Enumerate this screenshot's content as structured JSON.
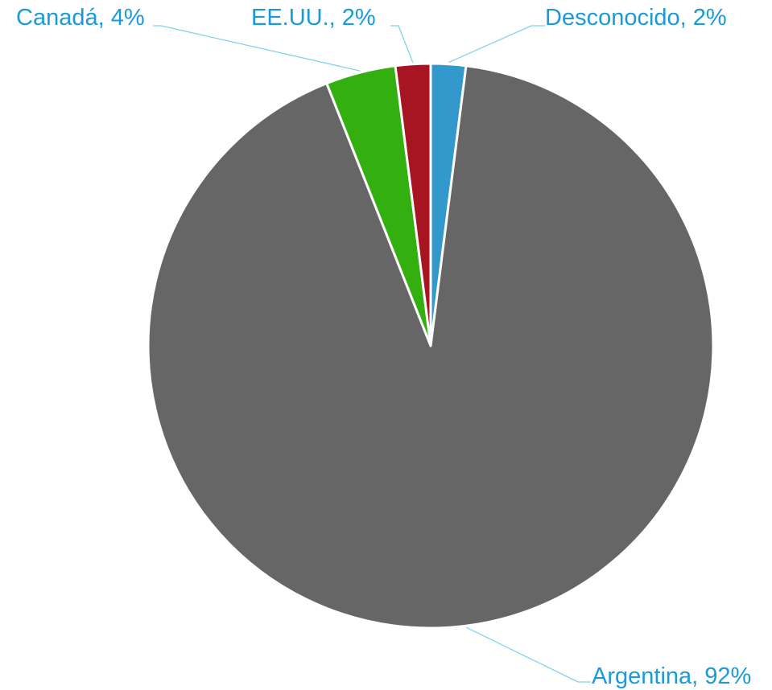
{
  "chart_data": {
    "type": "pie",
    "title": "",
    "categories": [
      "Desconocido",
      "Argentina",
      "Canadá",
      "EE.UU."
    ],
    "values": [
      2,
      92,
      4,
      2
    ],
    "labels": [
      "Desconocido, 2%",
      "Argentina, 92%",
      "Canadá, 4%",
      "EE.UU., 2%"
    ],
    "colors": [
      "#3399cc",
      "#666666",
      "#33b010",
      "#a81522"
    ],
    "label_color": "#1a9bd7",
    "leader_color": "#7fd3ec",
    "legend": "none",
    "start_angle": "top",
    "direction": "clockwise"
  }
}
